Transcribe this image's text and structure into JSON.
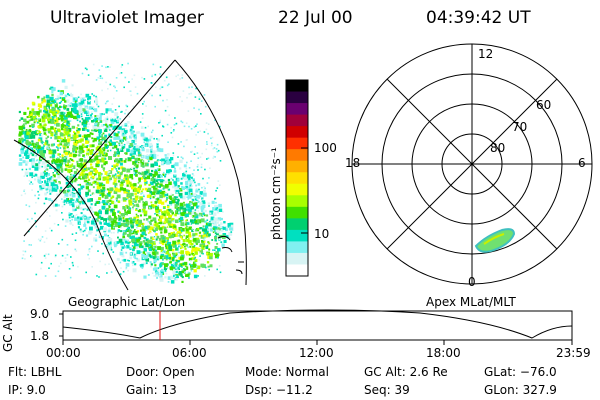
{
  "header": {
    "title": "Ultraviolet Imager",
    "date": "22 Jul 00",
    "time": "04:39:42 UT"
  },
  "left_panel": {
    "caption": "Geographic Lat/Lon"
  },
  "colorbar": {
    "unit_label": "photon cm⁻²s⁻¹",
    "ticks": [
      "100",
      "10"
    ],
    "colors": [
      "#000000",
      "#2a0040",
      "#6a0070",
      "#a0003a",
      "#d00000",
      "#ff3000",
      "#ff7a00",
      "#ffb000",
      "#ffe000",
      "#f0ff00",
      "#a8ff00",
      "#40e000",
      "#00d070",
      "#00e0c0",
      "#80f0f0",
      "#d8f4f4",
      "#ffffff"
    ]
  },
  "right_panel": {
    "caption": "Apex MLat/MLT",
    "mlt_labels": [
      "12",
      "18",
      "6",
      "0"
    ],
    "mlat_labels": [
      "60",
      "70",
      "80"
    ]
  },
  "timeline": {
    "ylabel": "GC Alt",
    "yticks": [
      "9.0",
      "1.8"
    ],
    "xticks": [
      "00:00",
      "06:00",
      "12:00",
      "18:00",
      "23:59"
    ],
    "marker_color": "#e01010"
  },
  "info": {
    "row1": {
      "flt": "Flt: LBHL",
      "door": "Door: Open",
      "mode": "Mode: Normal",
      "gcalt": "GC Alt: 2.6 Re",
      "glat": "GLat: −76.0"
    },
    "row2": {
      "ip": "IP:  9.0",
      "gain": "Gain: 13",
      "dsp": "Dsp:  −11.2",
      "seq": "Seq: 39",
      "glon": "GLon: 327.9"
    }
  }
}
